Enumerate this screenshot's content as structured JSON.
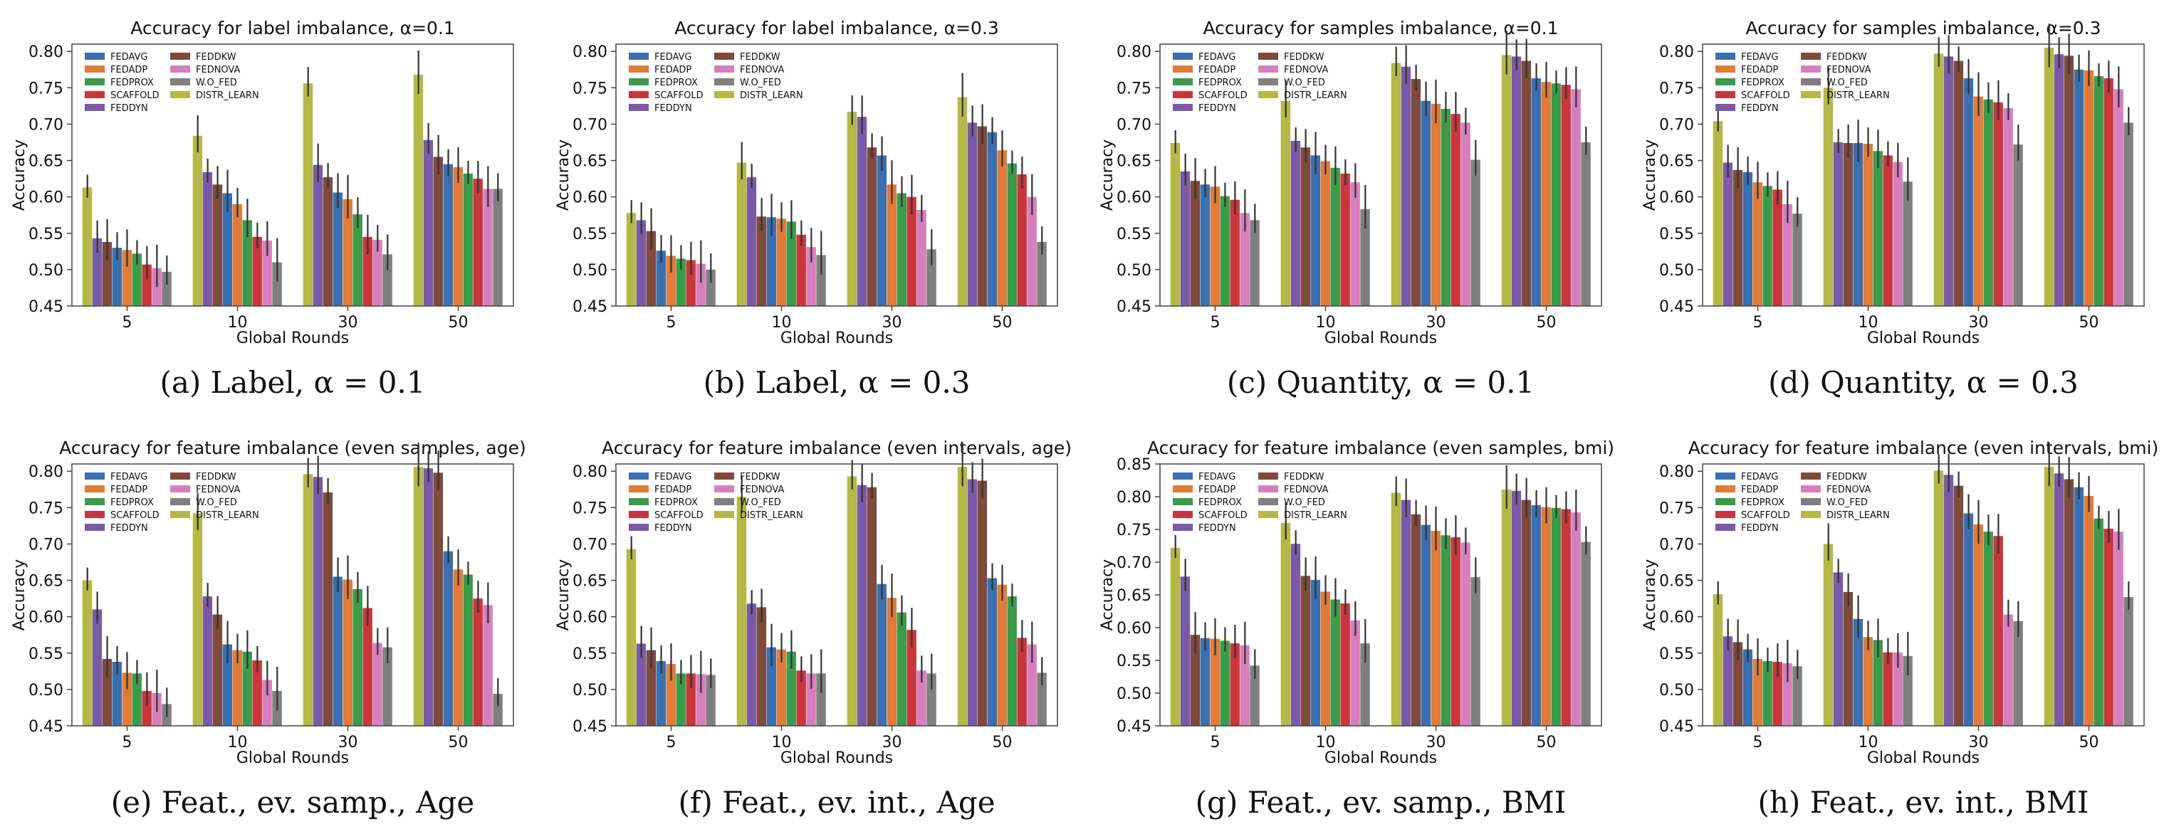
{
  "legend_labels": [
    "FEDAVG",
    "FEDADP",
    "FEDPROX",
    "SCAFFOLD",
    "FEDDYN",
    "FEDDKW",
    "FEDNOVA",
    "W.O_FED",
    "DISTR_LEARN"
  ],
  "series_colors": [
    "#3a6fb0",
    "#e07b39",
    "#3b9b4b",
    "#c9363b",
    "#7a5aa6",
    "#7d4a3c",
    "#d67fbd",
    "#7f7f7f",
    "#b5b845"
  ],
  "chart_data": [
    {
      "type": "bar",
      "title": "Accuracy for label imbalance, α=0.1",
      "caption": "(a) Label, α = 0.1",
      "xlabel": "Global Rounds",
      "ylabel": "Accuracy",
      "categories": [
        "5",
        "10",
        "30",
        "50"
      ],
      "ylim": [
        0.45,
        0.81
      ],
      "yticks": [
        0.45,
        0.5,
        0.55,
        0.6,
        0.65,
        0.7,
        0.75,
        0.8
      ],
      "legend": "top-left, two columns",
      "series": [
        {
          "name": "DISTR_LEARN",
          "values": [
            0.613,
            0.684,
            0.756,
            0.768
          ]
        },
        {
          "name": "FEDDYN",
          "values": [
            0.543,
            0.634,
            0.644,
            0.678
          ]
        },
        {
          "name": "FEDDKW",
          "values": [
            0.538,
            0.617,
            0.627,
            0.655
          ]
        },
        {
          "name": "FEDAVG",
          "values": [
            0.53,
            0.605,
            0.606,
            0.645
          ]
        },
        {
          "name": "FEDADP",
          "values": [
            0.527,
            0.59,
            0.597,
            0.641
          ]
        },
        {
          "name": "FEDPROX",
          "values": [
            0.522,
            0.568,
            0.576,
            0.632
          ]
        },
        {
          "name": "SCAFFOLD",
          "values": [
            0.507,
            0.545,
            0.545,
            0.625
          ]
        },
        {
          "name": "FEDNOVA",
          "values": [
            0.502,
            0.54,
            0.541,
            0.611
          ]
        },
        {
          "name": "W.O_FED",
          "values": [
            0.497,
            0.51,
            0.521,
            0.611
          ]
        }
      ]
    },
    {
      "type": "bar",
      "title": "Accuracy for label imbalance, α=0.3",
      "caption": "(b) Label, α = 0.3",
      "xlabel": "Global Rounds",
      "ylabel": "Accuracy",
      "categories": [
        "5",
        "10",
        "30",
        "50"
      ],
      "ylim": [
        0.45,
        0.81
      ],
      "yticks": [
        0.45,
        0.5,
        0.55,
        0.6,
        0.65,
        0.7,
        0.75,
        0.8
      ],
      "legend": "top-left, two columns",
      "series": [
        {
          "name": "DISTR_LEARN",
          "values": [
            0.578,
            0.647,
            0.717,
            0.737
          ]
        },
        {
          "name": "FEDDYN",
          "values": [
            0.568,
            0.627,
            0.71,
            0.702
          ]
        },
        {
          "name": "FEDDKW",
          "values": [
            0.553,
            0.573,
            0.668,
            0.697
          ]
        },
        {
          "name": "FEDAVG",
          "values": [
            0.526,
            0.572,
            0.657,
            0.689
          ]
        },
        {
          "name": "FEDADP",
          "values": [
            0.519,
            0.57,
            0.617,
            0.664
          ]
        },
        {
          "name": "FEDPROX",
          "values": [
            0.515,
            0.566,
            0.605,
            0.646
          ]
        },
        {
          "name": "SCAFFOLD",
          "values": [
            0.513,
            0.548,
            0.6,
            0.631
          ]
        },
        {
          "name": "FEDNOVA",
          "values": [
            0.508,
            0.531,
            0.582,
            0.6
          ]
        },
        {
          "name": "W.O_FED",
          "values": [
            0.5,
            0.52,
            0.528,
            0.538
          ]
        }
      ]
    },
    {
      "type": "bar",
      "title": "Accuracy for samples imbalance, α=0.1",
      "caption": "(c) Quantity, α = 0.1",
      "xlabel": "Global Rounds",
      "ylabel": "Accuracy",
      "categories": [
        "5",
        "10",
        "30",
        "50"
      ],
      "ylim": [
        0.45,
        0.81
      ],
      "yticks": [
        0.45,
        0.5,
        0.55,
        0.6,
        0.65,
        0.7,
        0.75,
        0.8
      ],
      "legend": "top-left, two columns",
      "series": [
        {
          "name": "DISTR_LEARN",
          "values": [
            0.674,
            0.732,
            0.784,
            0.795
          ]
        },
        {
          "name": "FEDDYN",
          "values": [
            0.635,
            0.677,
            0.779,
            0.793
          ]
        },
        {
          "name": "FEDDKW",
          "values": [
            0.622,
            0.668,
            0.762,
            0.787
          ]
        },
        {
          "name": "FEDAVG",
          "values": [
            0.617,
            0.657,
            0.732,
            0.763
          ]
        },
        {
          "name": "FEDADP",
          "values": [
            0.614,
            0.649,
            0.728,
            0.758
          ]
        },
        {
          "name": "FEDPROX",
          "values": [
            0.601,
            0.64,
            0.721,
            0.756
          ]
        },
        {
          "name": "SCAFFOLD",
          "values": [
            0.596,
            0.632,
            0.714,
            0.754
          ]
        },
        {
          "name": "FEDNOVA",
          "values": [
            0.578,
            0.62,
            0.702,
            0.748
          ]
        },
        {
          "name": "W.O_FED",
          "values": [
            0.568,
            0.583,
            0.651,
            0.675
          ]
        }
      ]
    },
    {
      "type": "bar",
      "title": "Accuracy for samples imbalance, α=0.3",
      "caption": "(d) Quantity, α = 0.3",
      "xlabel": "Global Rounds",
      "ylabel": "Accuracy",
      "categories": [
        "5",
        "10",
        "30",
        "50"
      ],
      "ylim": [
        0.45,
        0.81
      ],
      "yticks": [
        0.45,
        0.5,
        0.55,
        0.6,
        0.65,
        0.7,
        0.75,
        0.8
      ],
      "legend": "top-left, two columns",
      "series": [
        {
          "name": "DISTR_LEARN",
          "values": [
            0.704,
            0.75,
            0.797,
            0.805
          ]
        },
        {
          "name": "FEDDYN",
          "values": [
            0.647,
            0.675,
            0.793,
            0.796
          ]
        },
        {
          "name": "FEDDKW",
          "values": [
            0.637,
            0.674,
            0.787,
            0.794
          ]
        },
        {
          "name": "FEDAVG",
          "values": [
            0.634,
            0.674,
            0.763,
            0.775
          ]
        },
        {
          "name": "FEDADP",
          "values": [
            0.62,
            0.673,
            0.738,
            0.774
          ]
        },
        {
          "name": "FEDPROX",
          "values": [
            0.615,
            0.663,
            0.734,
            0.766
          ]
        },
        {
          "name": "SCAFFOLD",
          "values": [
            0.61,
            0.657,
            0.73,
            0.763
          ]
        },
        {
          "name": "FEDNOVA",
          "values": [
            0.59,
            0.648,
            0.722,
            0.748
          ]
        },
        {
          "name": "W.O_FED",
          "values": [
            0.577,
            0.621,
            0.672,
            0.702
          ]
        }
      ]
    },
    {
      "type": "bar",
      "title": "Accuracy for feature imbalance (even samples, age)",
      "caption": "(e) Feat., ev. samp., Age",
      "xlabel": "Global Rounds",
      "ylabel": "Accuracy",
      "categories": [
        "5",
        "10",
        "30",
        "50"
      ],
      "ylim": [
        0.45,
        0.81
      ],
      "yticks": [
        0.45,
        0.5,
        0.55,
        0.6,
        0.65,
        0.7,
        0.75,
        0.8
      ],
      "legend": "top-left, two columns",
      "series": [
        {
          "name": "DISTR_LEARN",
          "values": [
            0.65,
            0.742,
            0.796,
            0.806
          ]
        },
        {
          "name": "FEDDYN",
          "values": [
            0.61,
            0.628,
            0.792,
            0.804
          ]
        },
        {
          "name": "FEDDKW",
          "values": [
            0.542,
            0.603,
            0.771,
            0.798
          ]
        },
        {
          "name": "FEDAVG",
          "values": [
            0.538,
            0.562,
            0.655,
            0.69
          ]
        },
        {
          "name": "FEDADP",
          "values": [
            0.523,
            0.554,
            0.651,
            0.665
          ]
        },
        {
          "name": "FEDPROX",
          "values": [
            0.522,
            0.552,
            0.638,
            0.658
          ]
        },
        {
          "name": "SCAFFOLD",
          "values": [
            0.498,
            0.54,
            0.612,
            0.625
          ]
        },
        {
          "name": "FEDNOVA",
          "values": [
            0.495,
            0.513,
            0.564,
            0.616
          ]
        },
        {
          "name": "W.O_FED",
          "values": [
            0.48,
            0.498,
            0.558,
            0.494
          ]
        }
      ]
    },
    {
      "type": "bar",
      "title": "Accuracy for feature imbalance (even intervals, age)",
      "caption": "(f) Feat., ev. int., Age",
      "xlabel": "Global Rounds",
      "ylabel": "Accuracy",
      "categories": [
        "5",
        "10",
        "30",
        "50"
      ],
      "ylim": [
        0.45,
        0.81
      ],
      "yticks": [
        0.45,
        0.5,
        0.55,
        0.6,
        0.65,
        0.7,
        0.75,
        0.8
      ],
      "legend": "top-left, two columns",
      "series": [
        {
          "name": "DISTR_LEARN",
          "values": [
            0.693,
            0.765,
            0.793,
            0.806
          ]
        },
        {
          "name": "FEDDYN",
          "values": [
            0.563,
            0.618,
            0.781,
            0.789
          ]
        },
        {
          "name": "FEDDKW",
          "values": [
            0.554,
            0.613,
            0.778,
            0.787
          ]
        },
        {
          "name": "FEDAVG",
          "values": [
            0.539,
            0.558,
            0.645,
            0.653
          ]
        },
        {
          "name": "FEDADP",
          "values": [
            0.535,
            0.555,
            0.626,
            0.644
          ]
        },
        {
          "name": "FEDPROX",
          "values": [
            0.522,
            0.552,
            0.606,
            0.628
          ]
        },
        {
          "name": "SCAFFOLD",
          "values": [
            0.522,
            0.526,
            0.582,
            0.571
          ]
        },
        {
          "name": "FEDNOVA",
          "values": [
            0.521,
            0.522,
            0.526,
            0.562
          ]
        },
        {
          "name": "W.O_FED",
          "values": [
            0.52,
            0.522,
            0.522,
            0.523
          ]
        }
      ]
    },
    {
      "type": "bar",
      "title": "Accuracy for feature imbalance (even samples, bmi)",
      "caption": "(g) Feat., ev. samp., BMI",
      "xlabel": "Global Rounds",
      "ylabel": "Accuracy",
      "categories": [
        "5",
        "10",
        "30",
        "50"
      ],
      "ylim": [
        0.45,
        0.85
      ],
      "yticks": [
        0.45,
        0.5,
        0.55,
        0.6,
        0.65,
        0.7,
        0.75,
        0.8,
        0.85
      ],
      "legend": "top-left, two columns",
      "series": [
        {
          "name": "DISTR_LEARN",
          "values": [
            0.722,
            0.76,
            0.806,
            0.811
          ]
        },
        {
          "name": "FEDDYN",
          "values": [
            0.678,
            0.728,
            0.795,
            0.809
          ]
        },
        {
          "name": "FEDDKW",
          "values": [
            0.589,
            0.679,
            0.773,
            0.795
          ]
        },
        {
          "name": "FEDAVG",
          "values": [
            0.584,
            0.673,
            0.757,
            0.787
          ]
        },
        {
          "name": "FEDADP",
          "values": [
            0.583,
            0.655,
            0.748,
            0.784
          ]
        },
        {
          "name": "FEDPROX",
          "values": [
            0.58,
            0.643,
            0.741,
            0.783
          ]
        },
        {
          "name": "SCAFFOLD",
          "values": [
            0.576,
            0.637,
            0.738,
            0.781
          ]
        },
        {
          "name": "FEDNOVA",
          "values": [
            0.573,
            0.611,
            0.73,
            0.776
          ]
        },
        {
          "name": "W.O_FED",
          "values": [
            0.542,
            0.576,
            0.677,
            0.731
          ]
        }
      ]
    },
    {
      "type": "bar",
      "title": "Accuracy for feature imbalance (even intervals, bmi)",
      "caption": "(h) Feat., ev. int., BMI",
      "xlabel": "Global Rounds",
      "ylabel": "Accuracy",
      "categories": [
        "5",
        "10",
        "30",
        "50"
      ],
      "ylim": [
        0.45,
        0.81
      ],
      "yticks": [
        0.45,
        0.5,
        0.55,
        0.6,
        0.65,
        0.7,
        0.75,
        0.8
      ],
      "legend": "top-left, two columns",
      "series": [
        {
          "name": "DISTR_LEARN",
          "values": [
            0.631,
            0.7,
            0.801,
            0.806
          ]
        },
        {
          "name": "FEDDYN",
          "values": [
            0.573,
            0.661,
            0.795,
            0.797
          ]
        },
        {
          "name": "FEDDKW",
          "values": [
            0.565,
            0.634,
            0.78,
            0.789
          ]
        },
        {
          "name": "FEDAVG",
          "values": [
            0.555,
            0.597,
            0.742,
            0.778
          ]
        },
        {
          "name": "FEDADP",
          "values": [
            0.542,
            0.572,
            0.727,
            0.766
          ]
        },
        {
          "name": "FEDPROX",
          "values": [
            0.539,
            0.568,
            0.717,
            0.735
          ]
        },
        {
          "name": "SCAFFOLD",
          "values": [
            0.538,
            0.551,
            0.711,
            0.721
          ]
        },
        {
          "name": "FEDNOVA",
          "values": [
            0.536,
            0.551,
            0.603,
            0.717
          ]
        },
        {
          "name": "W.O_FED",
          "values": [
            0.532,
            0.546,
            0.594,
            0.627
          ]
        }
      ]
    }
  ]
}
